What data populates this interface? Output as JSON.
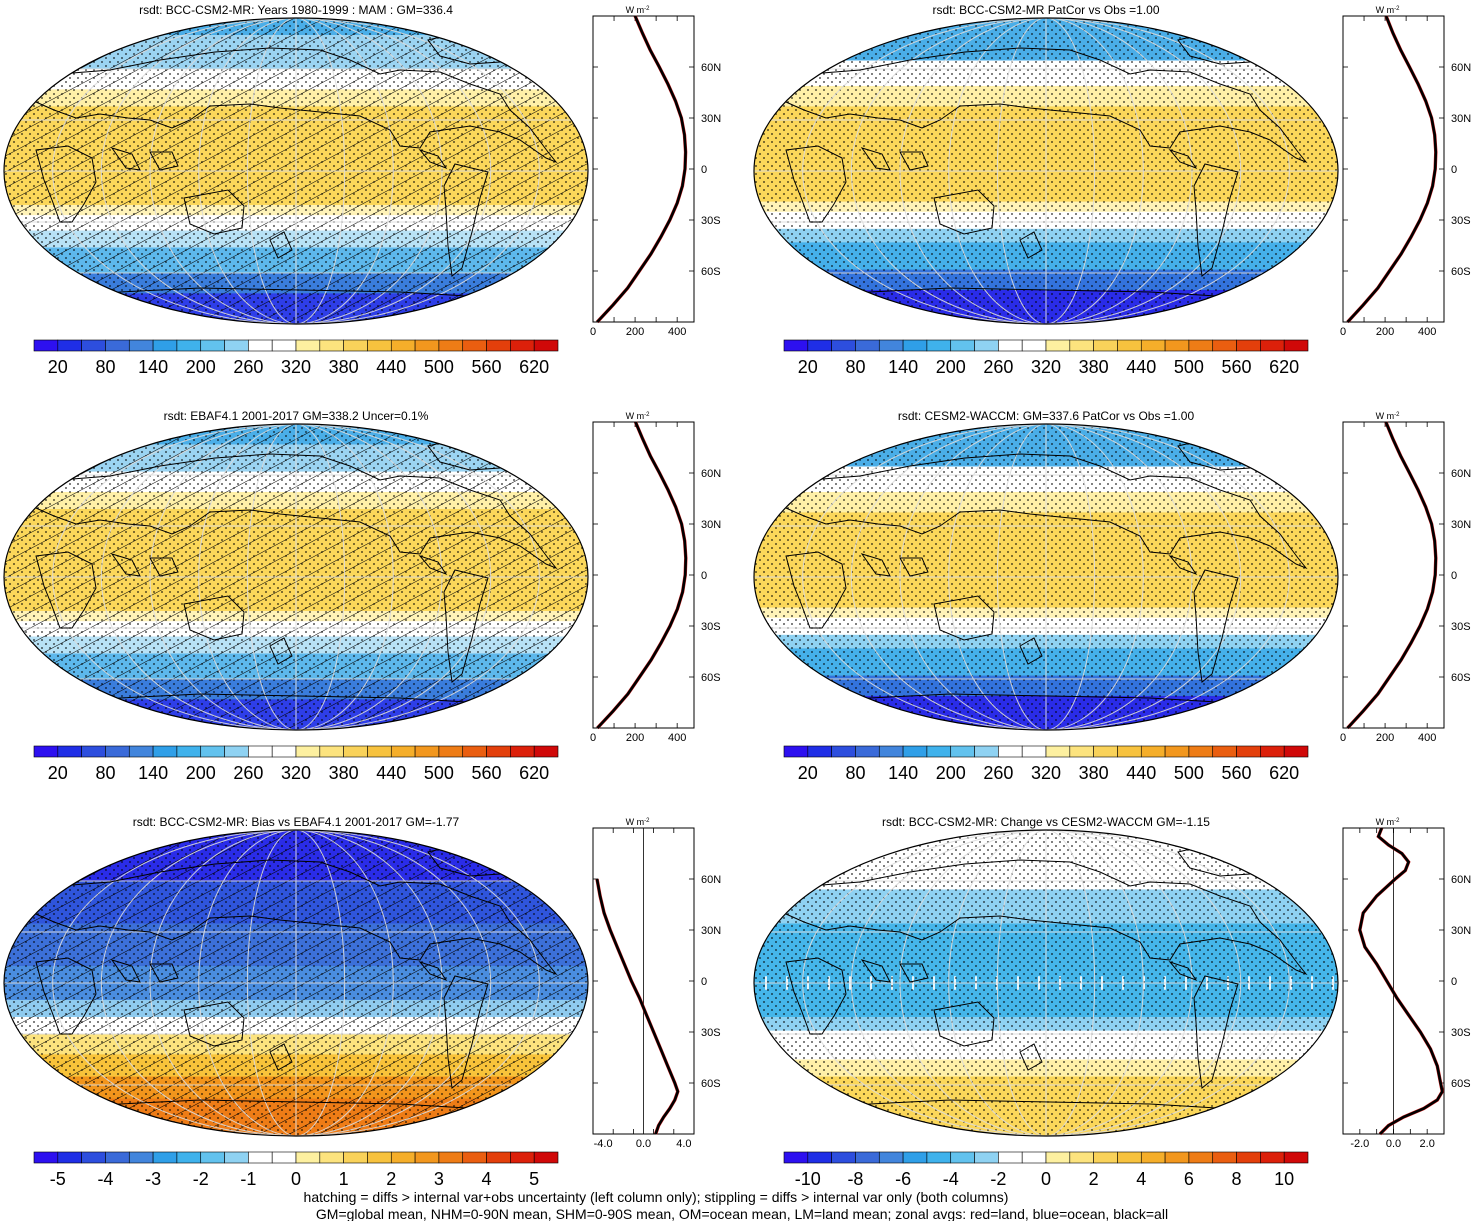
{
  "colors": {
    "warm": [
      "#fff7c2",
      "#fde98a",
      "#fbd75a",
      "#f8c33a",
      "#f5ae27",
      "#f2951c",
      "#ee7a14",
      "#e95a0e",
      "#e2380a",
      "#d40a05"
    ],
    "cool": [
      "#2e1ef0",
      "#2136e6",
      "#2f55dc",
      "#3c70d9",
      "#4689dd",
      "#3fa3e6",
      "#45b6ea",
      "#7ccaef",
      "#b8e2f6",
      "#ffffff"
    ],
    "cbar": [
      "#2d10f0",
      "#1f2ee6",
      "#2d4ede",
      "#3a6ad9",
      "#4285dc",
      "#2f9fe8",
      "#3fb2ec",
      "#62c2ee",
      "#8fd2f2",
      "#ffffff",
      "#ffffff",
      "#fdf0a0",
      "#fce37e",
      "#f9d25a",
      "#f7c23e",
      "#f5ae2a",
      "#f2971e",
      "#ee7c16",
      "#ea5e10",
      "#e33f0b",
      "#dc200a",
      "#d00808"
    ],
    "profile": "#000000",
    "profile_land": "#d21c1c"
  },
  "panels": [
    {
      "id": "model-climatology",
      "title": "rsdt: BCC-CSM2-MR: Years 1980-1999 : MAM : GM=336.4",
      "hatch": true,
      "map_bands": [
        {
          "lat": [
            90,
            80
          ],
          "color": "#4aaee8"
        },
        {
          "lat": [
            80,
            60
          ],
          "color": "#9bd4f2"
        },
        {
          "lat": [
            60,
            48
          ],
          "color": "#ffffff"
        },
        {
          "lat": [
            48,
            38
          ],
          "color": "#fff0a8"
        },
        {
          "lat": [
            38,
            -20
          ],
          "color": "#fbd75a"
        },
        {
          "lat": [
            -20,
            -26
          ],
          "color": "#fff3b8"
        },
        {
          "lat": [
            -26,
            -35
          ],
          "color": "#ffffff"
        },
        {
          "lat": [
            -35,
            -45
          ],
          "color": "#b8e2f6"
        },
        {
          "lat": [
            -45,
            -60
          ],
          "color": "#5db8ec"
        },
        {
          "lat": [
            -60,
            -72
          ],
          "color": "#3a7ddc"
        },
        {
          "lat": [
            -72,
            -90
          ],
          "color": "#2e3ee8"
        }
      ],
      "colorbar": {
        "labels": [
          "20",
          "80",
          "140",
          "200",
          "260",
          "320",
          "380",
          "440",
          "500",
          "560",
          "620"
        ]
      },
      "profile": {
        "x_ticks": [
          "0",
          "200",
          "400"
        ],
        "xlim": [
          0,
          480
        ],
        "zero_line": false,
        "lat": [
          90,
          80,
          70,
          60,
          50,
          40,
          30,
          20,
          10,
          0,
          -10,
          -20,
          -30,
          -40,
          -50,
          -60,
          -70,
          -80,
          -90
        ],
        "values": [
          200,
          235,
          272,
          315,
          356,
          392,
          420,
          435,
          440,
          437,
          425,
          400,
          365,
          322,
          275,
          220,
          165,
          95,
          20
        ]
      }
    },
    {
      "id": "model-patcor",
      "title": "rsdt: BCC-CSM2-MR PatCor vs Obs =1.00",
      "hatch": false,
      "map_bands": [
        {
          "lat": [
            90,
            65
          ],
          "color": "#4aaee8"
        },
        {
          "lat": [
            65,
            50
          ],
          "color": "#ffffff"
        },
        {
          "lat": [
            50,
            38
          ],
          "color": "#fff0a8"
        },
        {
          "lat": [
            38,
            -18
          ],
          "color": "#fbd75a"
        },
        {
          "lat": [
            -18,
            -24
          ],
          "color": "#fff3b8"
        },
        {
          "lat": [
            -24,
            -34
          ],
          "color": "#ffffff"
        },
        {
          "lat": [
            -34,
            -42
          ],
          "color": "#8fd2f2"
        },
        {
          "lat": [
            -42,
            -58
          ],
          "color": "#45b0ea"
        },
        {
          "lat": [
            -58,
            -70
          ],
          "color": "#3373dd"
        },
        {
          "lat": [
            -70,
            -90
          ],
          "color": "#2a2ce8"
        }
      ],
      "colorbar": {
        "labels": [
          "20",
          "80",
          "140",
          "200",
          "260",
          "320",
          "380",
          "440",
          "500",
          "560",
          "620"
        ]
      },
      "profile": {
        "x_ticks": [
          "0",
          "200",
          "400"
        ],
        "xlim": [
          0,
          480
        ],
        "zero_line": false,
        "lat": [
          90,
          80,
          70,
          60,
          50,
          40,
          30,
          20,
          10,
          0,
          -10,
          -20,
          -30,
          -40,
          -50,
          -60,
          -70,
          -80,
          -90
        ],
        "values": [
          205,
          237,
          274,
          316,
          357,
          393,
          421,
          436,
          441,
          438,
          426,
          401,
          366,
          323,
          276,
          221,
          166,
          96,
          22
        ]
      }
    },
    {
      "id": "obs-climatology",
      "title": "rsdt: EBAF4.1 2001-2017 GM=338.2 Uncer=0.1%",
      "hatch": true,
      "map_bands": [
        {
          "lat": [
            90,
            78
          ],
          "color": "#4aaee8"
        },
        {
          "lat": [
            78,
            62
          ],
          "color": "#9bd4f2"
        },
        {
          "lat": [
            62,
            50
          ],
          "color": "#ffffff"
        },
        {
          "lat": [
            50,
            40
          ],
          "color": "#fff0a8"
        },
        {
          "lat": [
            40,
            -20
          ],
          "color": "#fbd75a"
        },
        {
          "lat": [
            -20,
            -26
          ],
          "color": "#fff3b8"
        },
        {
          "lat": [
            -26,
            -35
          ],
          "color": "#ffffff"
        },
        {
          "lat": [
            -35,
            -45
          ],
          "color": "#b8e2f6"
        },
        {
          "lat": [
            -45,
            -60
          ],
          "color": "#5db8ec"
        },
        {
          "lat": [
            -60,
            -72
          ],
          "color": "#3a7ddc"
        },
        {
          "lat": [
            -72,
            -90
          ],
          "color": "#2e3ee8"
        }
      ],
      "colorbar": {
        "labels": [
          "20",
          "80",
          "140",
          "200",
          "260",
          "320",
          "380",
          "440",
          "500",
          "560",
          "620"
        ]
      },
      "profile": {
        "x_ticks": [
          "0",
          "200",
          "400"
        ],
        "xlim": [
          0,
          480
        ],
        "zero_line": false,
        "lat": [
          90,
          80,
          70,
          60,
          50,
          40,
          30,
          20,
          10,
          0,
          -10,
          -20,
          -30,
          -40,
          -50,
          -60,
          -70,
          -80,
          -90
        ],
        "values": [
          202,
          236,
          273,
          316,
          357,
          393,
          421,
          436,
          441,
          438,
          426,
          401,
          366,
          323,
          276,
          221,
          166,
          96,
          21
        ]
      }
    },
    {
      "id": "reference-model",
      "title": "rsdt: CESM2-WACCM: GM=337.6 PatCor vs Obs =1.00",
      "hatch": false,
      "map_bands": [
        {
          "lat": [
            90,
            65
          ],
          "color": "#4aaee8"
        },
        {
          "lat": [
            65,
            50
          ],
          "color": "#ffffff"
        },
        {
          "lat": [
            50,
            38
          ],
          "color": "#fff0a8"
        },
        {
          "lat": [
            38,
            -18
          ],
          "color": "#fbd75a"
        },
        {
          "lat": [
            -18,
            -24
          ],
          "color": "#fff3b8"
        },
        {
          "lat": [
            -24,
            -34
          ],
          "color": "#ffffff"
        },
        {
          "lat": [
            -34,
            -42
          ],
          "color": "#8fd2f2"
        },
        {
          "lat": [
            -42,
            -58
          ],
          "color": "#45b0ea"
        },
        {
          "lat": [
            -58,
            -70
          ],
          "color": "#3373dd"
        },
        {
          "lat": [
            -70,
            -90
          ],
          "color": "#2a2ce8"
        }
      ],
      "colorbar": {
        "labels": [
          "20",
          "80",
          "140",
          "200",
          "260",
          "320",
          "380",
          "440",
          "500",
          "560",
          "620"
        ]
      },
      "profile": {
        "x_ticks": [
          "0",
          "200",
          "400"
        ],
        "xlim": [
          0,
          480
        ],
        "zero_line": false,
        "lat": [
          90,
          80,
          70,
          60,
          50,
          40,
          30,
          20,
          10,
          0,
          -10,
          -20,
          -30,
          -40,
          -50,
          -60,
          -70,
          -80,
          -90
        ],
        "values": [
          204,
          237,
          274,
          316,
          357,
          393,
          421,
          436,
          441,
          438,
          426,
          401,
          366,
          323,
          276,
          221,
          166,
          96,
          22
        ]
      }
    },
    {
      "id": "bias",
      "title": "rsdt: BCC-CSM2-MR: Bias vs EBAF4.1 2001-2017 GM=-1.77",
      "hatch": true,
      "map_bands": [
        {
          "lat": [
            90,
            60
          ],
          "color": "#2a2ce8"
        },
        {
          "lat": [
            60,
            35
          ],
          "color": "#2f55dc"
        },
        {
          "lat": [
            35,
            10
          ],
          "color": "#3c70d9"
        },
        {
          "lat": [
            10,
            -10
          ],
          "color": "#4a8ddf"
        },
        {
          "lat": [
            -10,
            -20
          ],
          "color": "#8fcbef"
        },
        {
          "lat": [
            -20,
            -30
          ],
          "color": "#ffffff"
        },
        {
          "lat": [
            -30,
            -42
          ],
          "color": "#fce37e"
        },
        {
          "lat": [
            -42,
            -55
          ],
          "color": "#f8c33a"
        },
        {
          "lat": [
            -55,
            -68
          ],
          "color": "#f2951c"
        },
        {
          "lat": [
            -68,
            -90
          ],
          "color": "#ee7c16"
        }
      ],
      "colorbar": {
        "labels": [
          "-5",
          "-4",
          "-3",
          "-2",
          "-1",
          "0",
          "1",
          "2",
          "3",
          "4",
          "5"
        ]
      },
      "profile": {
        "x_ticks": [
          "-4.0",
          "0.0",
          "4.0"
        ],
        "xlim": [
          -5,
          5
        ],
        "zero_line": true,
        "lat": [
          60,
          50,
          40,
          30,
          20,
          10,
          0,
          -10,
          -20,
          -30,
          -40,
          -50,
          -60,
          -65,
          -70,
          -75,
          -80,
          -85,
          -90
        ],
        "values": [
          -4.6,
          -4.3,
          -3.9,
          -3.3,
          -2.6,
          -1.9,
          -1.2,
          -0.4,
          0.3,
          1.0,
          1.7,
          2.4,
          3.1,
          3.4,
          3.1,
          2.6,
          2.0,
          1.5,
          1.2
        ]
      }
    },
    {
      "id": "change",
      "title": "rsdt: BCC-CSM2-MR: Change vs CESM2-WACCM GM=-1.15",
      "hatch": false,
      "map_bands": [
        {
          "lat": [
            90,
            55
          ],
          "color": "#ffffff"
        },
        {
          "lat": [
            55,
            35
          ],
          "color": "#8fd2f2"
        },
        {
          "lat": [
            35,
            -20
          ],
          "color": "#45b6ea"
        },
        {
          "lat": [
            -20,
            -28
          ],
          "color": "#8fd2f2"
        },
        {
          "lat": [
            -28,
            -45
          ],
          "color": "#ffffff"
        },
        {
          "lat": [
            -45,
            -55
          ],
          "color": "#fff0a8"
        },
        {
          "lat": [
            -55,
            -90
          ],
          "color": "#fbd75a"
        }
      ],
      "colorbar": {
        "labels": [
          "-10",
          "-8",
          "-6",
          "-4",
          "-2",
          "0",
          "2",
          "4",
          "6",
          "8",
          "10"
        ]
      },
      "profile": {
        "x_ticks": [
          "-2.0",
          "0.0",
          "2.0"
        ],
        "xlim": [
          -3.0,
          3.0
        ],
        "zero_line": true,
        "lat": [
          90,
          85,
          80,
          75,
          70,
          65,
          60,
          50,
          40,
          30,
          20,
          10,
          0,
          -10,
          -20,
          -30,
          -40,
          -50,
          -60,
          -65,
          -70,
          -75,
          -80,
          -85,
          -90
        ],
        "values": [
          -0.7,
          -0.9,
          -0.3,
          0.5,
          0.9,
          0.7,
          0.1,
          -1.0,
          -1.8,
          -2.0,
          -1.7,
          -1.0,
          -0.4,
          0.2,
          0.9,
          1.6,
          2.2,
          2.6,
          2.8,
          2.9,
          2.6,
          1.8,
          0.6,
          -0.3,
          -0.8
        ]
      }
    }
  ],
  "profile_unit": "W m",
  "profile_unit_exp": "-2",
  "lat_ticks": [
    "60N",
    "30N",
    "0",
    "30S",
    "60S"
  ],
  "footer": [
    "hatching = diffs > internal var+obs uncertainty (left column only); stippling = diffs > internal var only (both columns)",
    "GM=global mean, NHM=0-90N mean, SHM=0-90S mean, OM=ocean mean, LM=land mean; zonal avgs: red=land, blue=ocean, black=all"
  ],
  "chart_data": [
    {
      "type": "heatmap",
      "title": "rsdt: BCC-CSM2-MR: Years 1980-1999 : MAM : GM=336.4",
      "colorbar": [
        20,
        80,
        140,
        200,
        260,
        320,
        380,
        440,
        500,
        560,
        620
      ]
    },
    {
      "type": "heatmap",
      "title": "rsdt: BCC-CSM2-MR PatCor vs Obs =1.00",
      "colorbar": [
        20,
        80,
        140,
        200,
        260,
        320,
        380,
        440,
        500,
        560,
        620
      ]
    },
    {
      "type": "heatmap",
      "title": "rsdt: EBAF4.1 2001-2017 GM=338.2 Uncer=0.1%",
      "colorbar": [
        20,
        80,
        140,
        200,
        260,
        320,
        380,
        440,
        500,
        560,
        620
      ]
    },
    {
      "type": "heatmap",
      "title": "rsdt: CESM2-WACCM: GM=337.6 PatCor vs Obs =1.00",
      "colorbar": [
        20,
        80,
        140,
        200,
        260,
        320,
        380,
        440,
        500,
        560,
        620
      ]
    },
    {
      "type": "heatmap",
      "title": "rsdt: BCC-CSM2-MR: Bias vs EBAF4.1 2001-2017 GM=-1.77",
      "colorbar": [
        -5,
        -4,
        -3,
        -2,
        -1,
        0,
        1,
        2,
        3,
        4,
        5
      ]
    },
    {
      "type": "heatmap",
      "title": "rsdt: BCC-CSM2-MR: Change vs CESM2-WACCM GM=-1.15",
      "colorbar": [
        -10,
        -8,
        -6,
        -4,
        -2,
        0,
        2,
        4,
        6,
        8,
        10
      ]
    }
  ]
}
